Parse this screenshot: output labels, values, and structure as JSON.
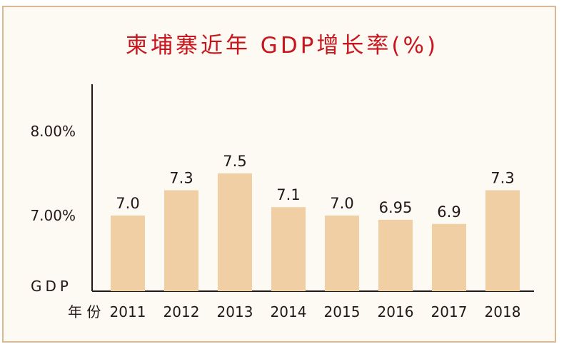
{
  "chart_data": {
    "type": "bar",
    "title": "柬埔寨近年 GDP增长率(%)",
    "categories": [
      "2011",
      "2012",
      "2013",
      "2014",
      "2015",
      "2016",
      "2017",
      "2018"
    ],
    "values": [
      7.0,
      7.3,
      7.5,
      7.1,
      7.0,
      6.95,
      6.9,
      7.3
    ],
    "value_labels": [
      "7.0",
      "7.3",
      "7.5",
      "7.1",
      "7.0",
      "6.95",
      "6.9",
      "7.3"
    ],
    "y_ticks": [
      {
        "value": 7.0,
        "label": "7.00%"
      },
      {
        "value": 8.0,
        "label": "8.00%"
      }
    ],
    "ylabel": "GDP",
    "xlabel": "年 份",
    "grid": false,
    "legend": "none"
  },
  "colors": {
    "bar": "#efcfa3",
    "title": "#c7161e",
    "frame": "#d9b893",
    "text": "#231815"
  }
}
